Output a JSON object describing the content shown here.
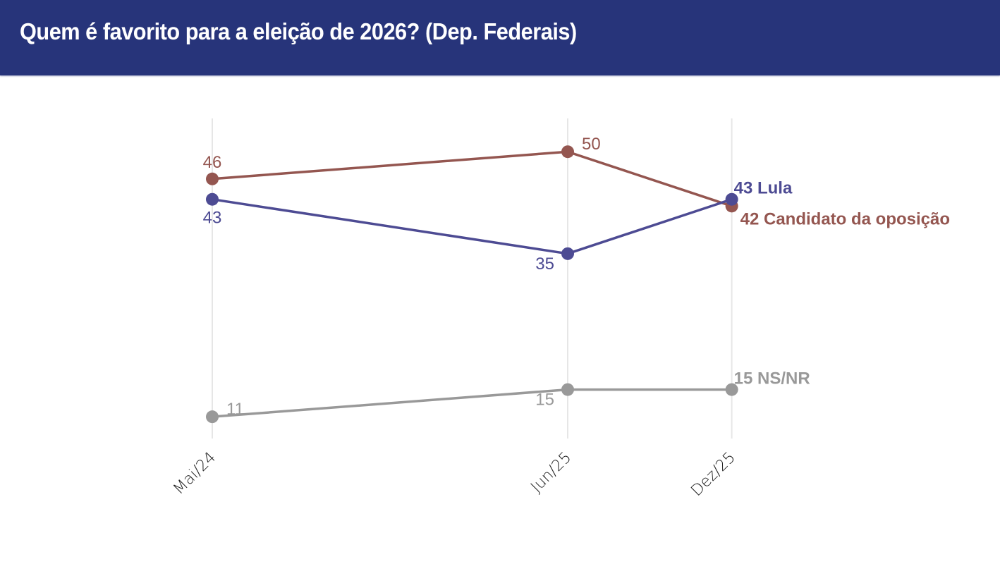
{
  "header": {
    "title": "Quem é favorito para a eleição de 2026? (Dep. Federais)"
  },
  "chart_data": {
    "type": "line",
    "title": "Quem é favorito para a eleição de 2026? (Dep. Federais)",
    "xlabel": "",
    "ylabel": "",
    "categories": [
      "Mai/24",
      "Jun/25",
      "Dez/25"
    ],
    "x_months": [
      0,
      13,
      19
    ],
    "ylim": [
      7.8,
      54.9
    ],
    "grid": "vertical",
    "legend": "direct-labels-right",
    "series": [
      {
        "name": "Candidato da oposição",
        "color": "#945650",
        "values": [
          46,
          50,
          42
        ],
        "point_labels": [
          "46",
          "50",
          "42 Candidato da oposição"
        ],
        "label_pos": [
          "above",
          "above-right",
          "below-right"
        ]
      },
      {
        "name": "Lula",
        "color": "#4d4b93",
        "values": [
          43,
          35,
          43
        ],
        "point_labels": [
          "43",
          "35",
          "43 Lula"
        ],
        "label_pos": [
          "below",
          "below-left",
          "above-right"
        ]
      },
      {
        "name": "NS/NR",
        "color": "#999999",
        "values": [
          11,
          15,
          15
        ],
        "point_labels": [
          "11",
          "15",
          "15 NS/NR"
        ],
        "label_pos": [
          "above-right",
          "below-left",
          "above-right"
        ]
      }
    ]
  }
}
